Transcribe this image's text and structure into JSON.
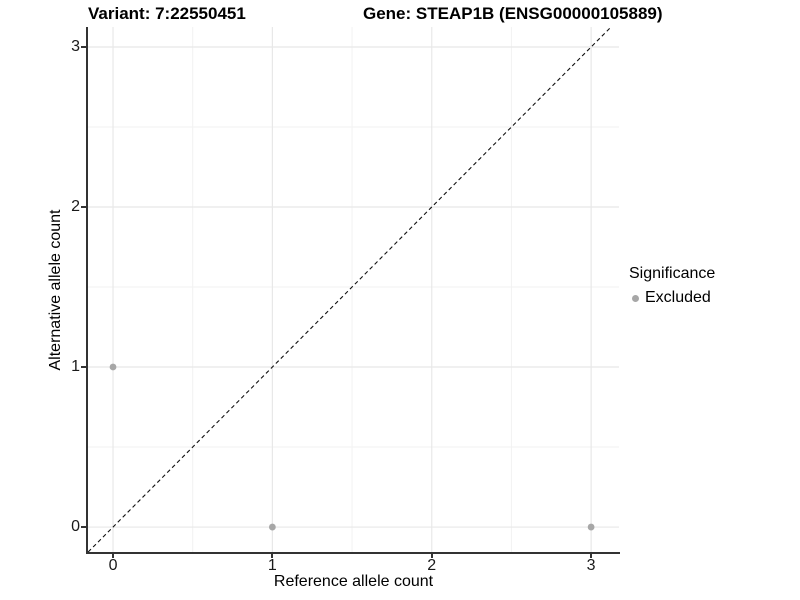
{
  "header": {
    "variant_title": "Variant: 7:22550451",
    "gene_title": "Gene: STEAP1B (ENSG00000105889)"
  },
  "chart_data": {
    "type": "scatter",
    "title": "",
    "xlabel": "Reference allele count",
    "ylabel": "Alternative allele count",
    "xlim": [
      -0.157,
      3.175
    ],
    "ylim": [
      -0.156,
      3.125
    ],
    "xticks": [
      0,
      1,
      2,
      3
    ],
    "yticks": [
      0,
      1,
      2,
      3
    ],
    "minor_xticks": [
      0.5,
      1.5,
      2.5
    ],
    "minor_yticks": [
      0.5,
      1.5,
      2.5
    ],
    "grid": true,
    "identity_line": {
      "style": "dashed",
      "color": "#111111",
      "equation": "y = x"
    },
    "series": [
      {
        "name": "Excluded",
        "color": "#A7A7A7",
        "points": [
          {
            "x": 0,
            "y": 1
          },
          {
            "x": 1,
            "y": 0
          },
          {
            "x": 3,
            "y": 0
          }
        ]
      }
    ],
    "legend": {
      "title": "Significance",
      "position": "right",
      "entries": [
        {
          "label": "Excluded",
          "color": "#A7A7A7"
        }
      ]
    }
  },
  "colors": {
    "background": "#FFFFFF",
    "grid_major": "#E8E8E8",
    "grid_minor": "#F2F2F2",
    "axis_line": "#333333",
    "point": "#A7A7A7",
    "dashed_line": "#111111"
  }
}
